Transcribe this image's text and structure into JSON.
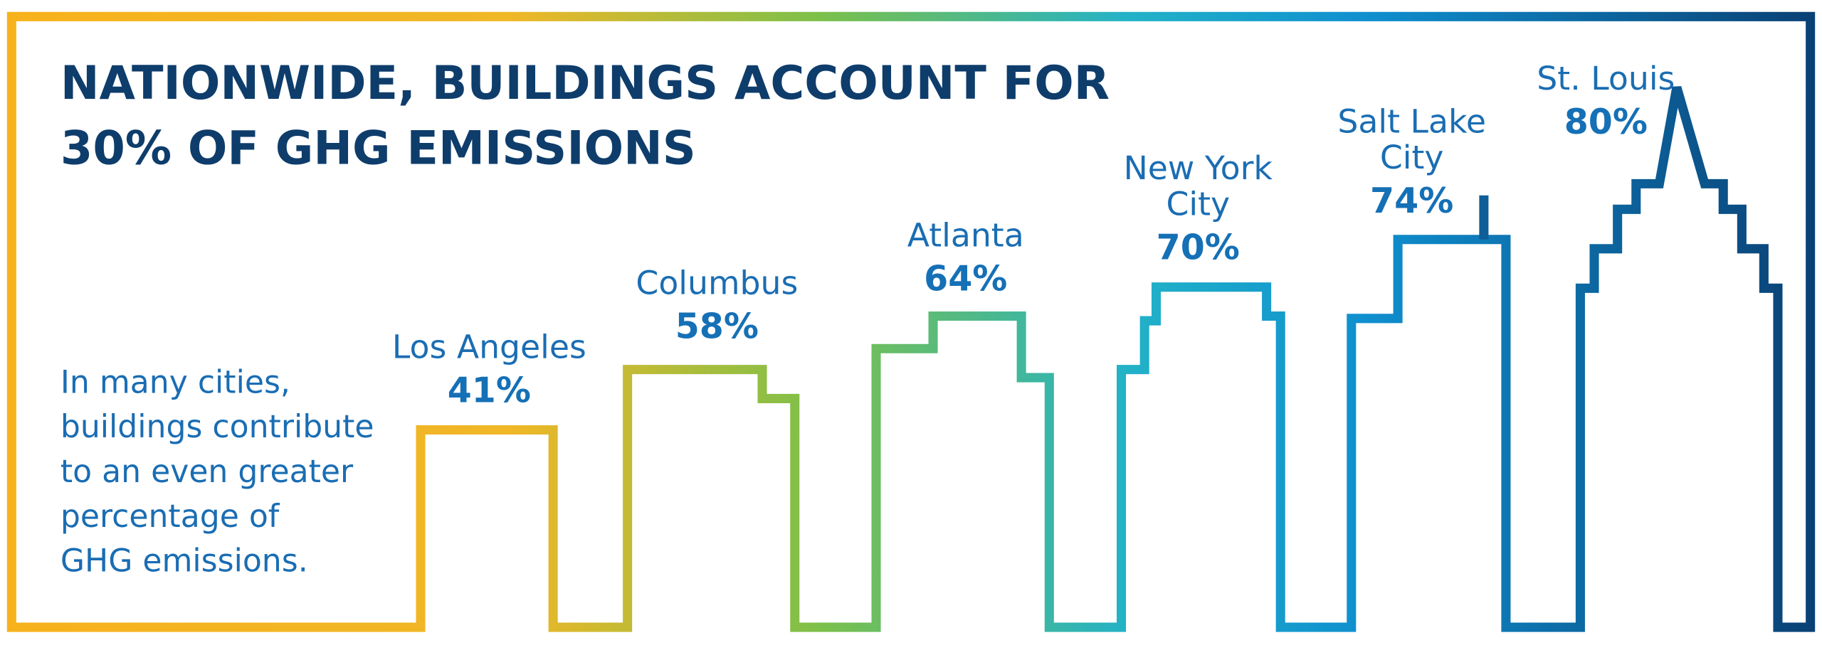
{
  "title": {
    "lines": [
      "NATIONWIDE, BUILDINGS ACCOUNT FOR",
      "30% OF GHG EMISSIONS"
    ]
  },
  "note": {
    "lines": [
      "In many cities,",
      "buildings contribute",
      "to an even greater",
      "percentage of",
      "GHG emissions."
    ]
  },
  "cities": [
    {
      "name": [
        "Los Angeles"
      ],
      "value": "41%"
    },
    {
      "name": [
        "Columbus"
      ],
      "value": "58%"
    },
    {
      "name": [
        "Atlanta"
      ],
      "value": "64%"
    },
    {
      "name": [
        "New York",
        "City"
      ],
      "value": "70%"
    },
    {
      "name": [
        "Salt Lake",
        "City"
      ],
      "value": "74%"
    },
    {
      "name": [
        "St. Louis"
      ],
      "value": "80%"
    }
  ]
}
